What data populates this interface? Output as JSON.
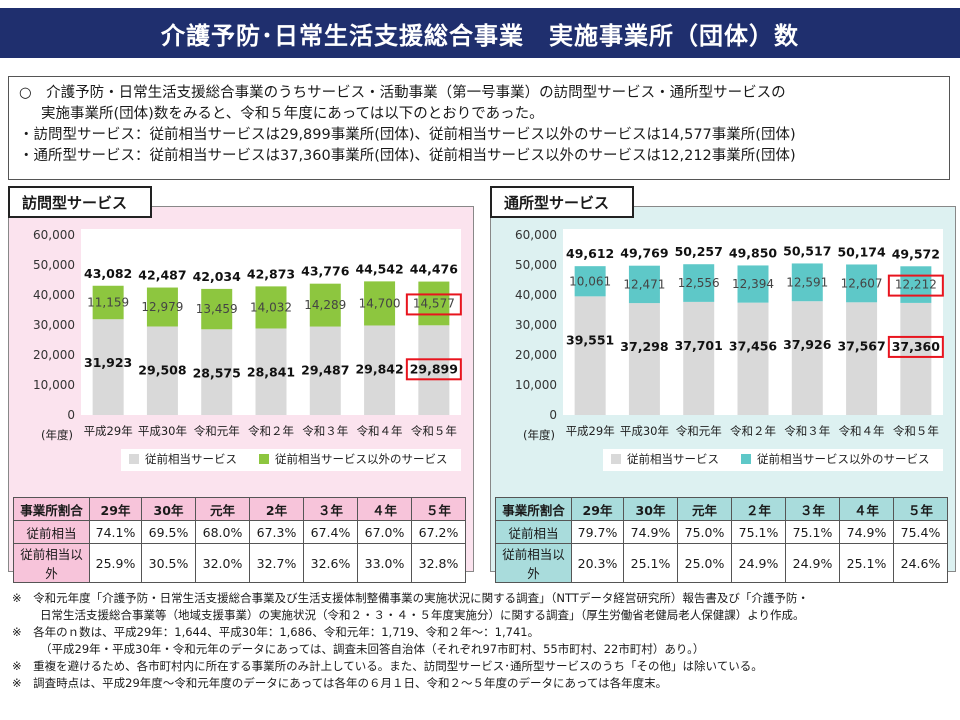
{
  "title": "介護予防･日常生活支援総合事業　実施事業所（団体）数",
  "summary": {
    "line1": "○　介護予防・日常生活支援総合事業のうちサービス・活動事業（第一号事業）の訪問型サービス・通所型サービスの",
    "line2": "実施事業所(団体)数をみると、令和５年度にあっては以下のとおりであった。",
    "line3": "・訪問型サービス：従前相当サービスは29,899事業所(団体)、従前相当サービス以外のサービスは14,577事業所(団体)",
    "line4": "・通所型サービス：従前相当サービスは37,360事業所(団体)、従前相当サービス以外のサービスは12,212事業所(団体)"
  },
  "colors": {
    "base_bar": "#d9d9d9",
    "visit_other": "#8dc63f",
    "day_other": "#5ec8c8",
    "highlight": "#e8141e"
  },
  "panels": {
    "visit": {
      "label": "訪問型サービス",
      "ratio_header": [
        "事業所割合",
        "29年",
        "30年",
        "元年",
        "2年",
        "３年",
        "４年",
        "５年"
      ],
      "ratio_rows": [
        [
          "従前相当",
          "74.1%",
          "69.5%",
          "68.0%",
          "67.3%",
          "67.4%",
          "67.0%",
          "67.2%"
        ],
        [
          "従前相当以外",
          "25.9%",
          "30.5%",
          "32.0%",
          "32.7%",
          "32.6%",
          "33.0%",
          "32.8%"
        ]
      ]
    },
    "day": {
      "label": "通所型サービス",
      "ratio_header": [
        "事業所割合",
        "29年",
        "30年",
        "元年",
        "２年",
        "３年",
        "４年",
        "５年"
      ],
      "ratio_rows": [
        [
          "従前相当",
          "79.7%",
          "74.9%",
          "75.0%",
          "75.1%",
          "75.1%",
          "74.9%",
          "75.4%"
        ],
        [
          "従前相当以外",
          "20.3%",
          "25.1%",
          "25.0%",
          "24.9%",
          "24.9%",
          "25.1%",
          "24.6%"
        ]
      ]
    }
  },
  "chart_data": [
    {
      "type": "bar",
      "stacked": true,
      "xlabel": "(年度)",
      "categories": [
        "平成29年",
        "平成30年",
        "令和元年",
        "令和２年",
        "令和３年",
        "令和４年",
        "令和５年"
      ],
      "ylim": [
        0,
        60000
      ],
      "yticks": [
        "0",
        "10,000",
        "20,000",
        "30,000",
        "40,000",
        "50,000",
        "60,000"
      ],
      "series": [
        {
          "name": "従前相当サービス",
          "values": [
            31923,
            29508,
            28575,
            28841,
            29487,
            29842,
            29899
          ],
          "labels": [
            "31,923",
            "29,508",
            "28,575",
            "28,841",
            "29,487",
            "29,842",
            "29,899"
          ]
        },
        {
          "name": "従前相当サービス以外のサービス",
          "values": [
            11159,
            12979,
            13459,
            14032,
            14289,
            14700,
            14577
          ],
          "labels": [
            "11,159",
            "12,979",
            "13,459",
            "14,032",
            "14,289",
            "14,700",
            "14,577"
          ]
        }
      ],
      "totals": [
        "43,082",
        "42,487",
        "42,034",
        "42,873",
        "43,776",
        "44,542",
        "44,476"
      ],
      "legend": "bottom"
    },
    {
      "type": "bar",
      "stacked": true,
      "xlabel": "(年度)",
      "categories": [
        "平成29年",
        "平成30年",
        "令和元年",
        "令和２年",
        "令和３年",
        "令和４年",
        "令和５年"
      ],
      "ylim": [
        0,
        60000
      ],
      "yticks": [
        "0",
        "10,000",
        "20,000",
        "30,000",
        "40,000",
        "50,000",
        "60,000"
      ],
      "series": [
        {
          "name": "従前相当サービス",
          "values": [
            39551,
            37298,
            37701,
            37456,
            37926,
            37567,
            37360
          ],
          "labels": [
            "39,551",
            "37,298",
            "37,701",
            "37,456",
            "37,926",
            "37,567",
            "37,360"
          ]
        },
        {
          "name": "従前相当サービス以外のサービス",
          "values": [
            10061,
            12471,
            12556,
            12394,
            12591,
            12607,
            12212
          ],
          "labels": [
            "10,061",
            "12,471",
            "12,556",
            "12,394",
            "12,591",
            "12,607",
            "12,212"
          ]
        }
      ],
      "totals": [
        "49,612",
        "49,769",
        "50,257",
        "49,850",
        "50,517",
        "50,174",
        "49,572"
      ],
      "legend": "bottom"
    }
  ],
  "notes": [
    "※　令和元年度「介護予防・日常生活支援総合事業及び生活支援体制整備事業の実施状況に関する調査」（NTTデータ経営研究所）報告書及び「介護予防・",
    "日常生活支援総合事業等（地域支援事業）の実施状況（令和２・３・４・５年度実施分）に関する調査」（厚生労働省老健局老人保健課）より作成。",
    "※　各年のｎ数は、平成29年：1,644、平成30年：1,686、令和元年：1,719、令和２年～：1,741。",
    "（平成29年・平成30年・令和元年のデータにあっては、調査未回答自治体（それぞれ97市町村、55市町村、22市町村）あり。）",
    "※　重複を避けるため、各市町村内に所在する事業所のみ計上している。また、訪問型サービス･通所型サービスのうち「その他」は除いている。",
    "※　調査時点は、平成29年度～令和元年度のデータにあっては各年の６月１日、令和２～５年度のデータにあっては各年度末。"
  ]
}
